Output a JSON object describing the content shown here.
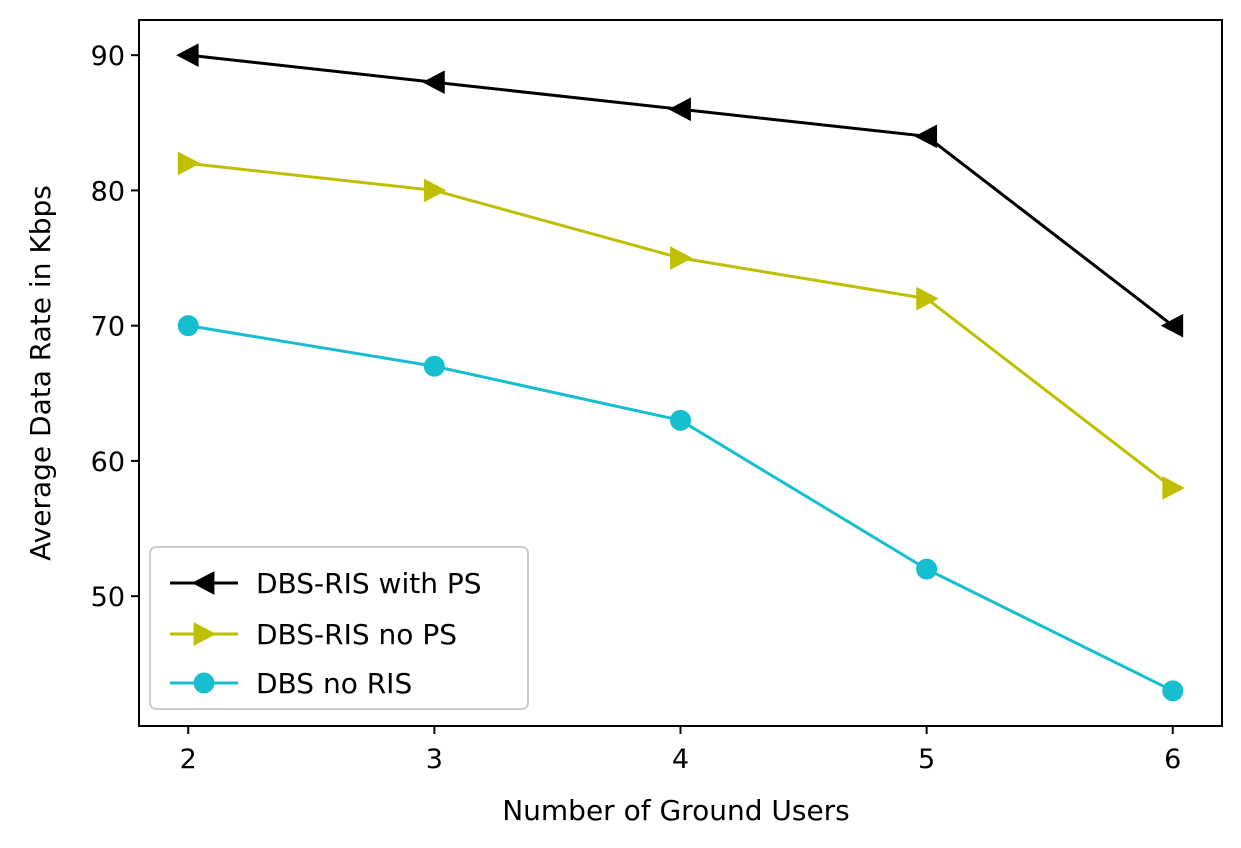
{
  "chart_data": {
    "type": "line",
    "title": "",
    "xlabel": "Number of Ground Users",
    "ylabel": "Average Data Rate in Kbps",
    "x": [
      2,
      3,
      4,
      5,
      6
    ],
    "xticks": [
      "2",
      "3",
      "4",
      "5",
      "6"
    ],
    "yticks": [
      "50",
      "60",
      "70",
      "80",
      "90"
    ],
    "xlim": [
      1.8,
      6.2
    ],
    "ylim": [
      40.4,
      92.6
    ],
    "grid": false,
    "legend_position": "lower-left",
    "series": [
      {
        "name": "DBS-RIS with PS",
        "color": "#000000",
        "marker": "triangle-left",
        "values": [
          90,
          88,
          86,
          84,
          70
        ]
      },
      {
        "name": "DBS-RIS no PS",
        "color": "#bfbf00",
        "marker": "triangle-right",
        "values": [
          82,
          80,
          75,
          72,
          58
        ]
      },
      {
        "name": "DBS no RIS",
        "color": "#17becf",
        "marker": "circle",
        "values": [
          70,
          67,
          63,
          52,
          43
        ]
      }
    ]
  }
}
